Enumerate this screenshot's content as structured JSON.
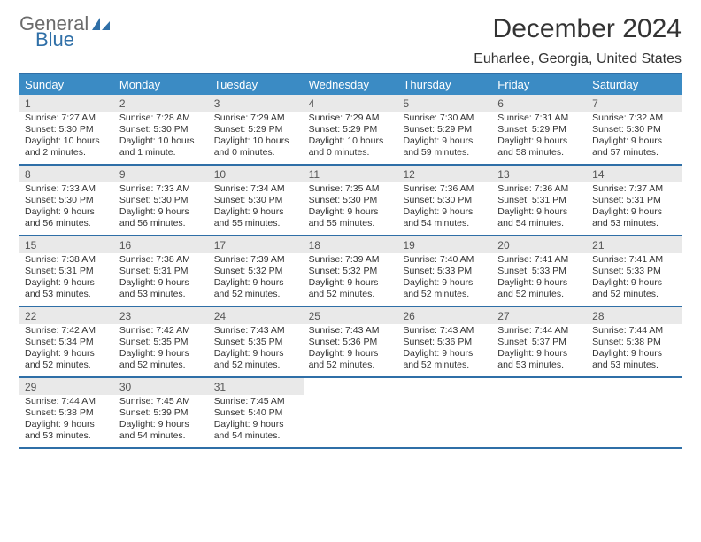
{
  "logo": {
    "word1": "General",
    "word2": "Blue",
    "color_gray": "#6b6b6b",
    "color_blue": "#2f6fa7"
  },
  "title": "December 2024",
  "location": "Euharlee, Georgia, United States",
  "header_bg": "#3b8bc4",
  "border_color": "#2f6fa7",
  "daynum_bg": "#e9e9e9",
  "day_names": [
    "Sunday",
    "Monday",
    "Tuesday",
    "Wednesday",
    "Thursday",
    "Friday",
    "Saturday"
  ],
  "weeks": [
    [
      {
        "n": "1",
        "sr": "7:27 AM",
        "ss": "5:30 PM",
        "dl": "10 hours and 2 minutes."
      },
      {
        "n": "2",
        "sr": "7:28 AM",
        "ss": "5:30 PM",
        "dl": "10 hours and 1 minute."
      },
      {
        "n": "3",
        "sr": "7:29 AM",
        "ss": "5:29 PM",
        "dl": "10 hours and 0 minutes."
      },
      {
        "n": "4",
        "sr": "7:29 AM",
        "ss": "5:29 PM",
        "dl": "10 hours and 0 minutes."
      },
      {
        "n": "5",
        "sr": "7:30 AM",
        "ss": "5:29 PM",
        "dl": "9 hours and 59 minutes."
      },
      {
        "n": "6",
        "sr": "7:31 AM",
        "ss": "5:29 PM",
        "dl": "9 hours and 58 minutes."
      },
      {
        "n": "7",
        "sr": "7:32 AM",
        "ss": "5:30 PM",
        "dl": "9 hours and 57 minutes."
      }
    ],
    [
      {
        "n": "8",
        "sr": "7:33 AM",
        "ss": "5:30 PM",
        "dl": "9 hours and 56 minutes."
      },
      {
        "n": "9",
        "sr": "7:33 AM",
        "ss": "5:30 PM",
        "dl": "9 hours and 56 minutes."
      },
      {
        "n": "10",
        "sr": "7:34 AM",
        "ss": "5:30 PM",
        "dl": "9 hours and 55 minutes."
      },
      {
        "n": "11",
        "sr": "7:35 AM",
        "ss": "5:30 PM",
        "dl": "9 hours and 55 minutes."
      },
      {
        "n": "12",
        "sr": "7:36 AM",
        "ss": "5:30 PM",
        "dl": "9 hours and 54 minutes."
      },
      {
        "n": "13",
        "sr": "7:36 AM",
        "ss": "5:31 PM",
        "dl": "9 hours and 54 minutes."
      },
      {
        "n": "14",
        "sr": "7:37 AM",
        "ss": "5:31 PM",
        "dl": "9 hours and 53 minutes."
      }
    ],
    [
      {
        "n": "15",
        "sr": "7:38 AM",
        "ss": "5:31 PM",
        "dl": "9 hours and 53 minutes."
      },
      {
        "n": "16",
        "sr": "7:38 AM",
        "ss": "5:31 PM",
        "dl": "9 hours and 53 minutes."
      },
      {
        "n": "17",
        "sr": "7:39 AM",
        "ss": "5:32 PM",
        "dl": "9 hours and 52 minutes."
      },
      {
        "n": "18",
        "sr": "7:39 AM",
        "ss": "5:32 PM",
        "dl": "9 hours and 52 minutes."
      },
      {
        "n": "19",
        "sr": "7:40 AM",
        "ss": "5:33 PM",
        "dl": "9 hours and 52 minutes."
      },
      {
        "n": "20",
        "sr": "7:41 AM",
        "ss": "5:33 PM",
        "dl": "9 hours and 52 minutes."
      },
      {
        "n": "21",
        "sr": "7:41 AM",
        "ss": "5:33 PM",
        "dl": "9 hours and 52 minutes."
      }
    ],
    [
      {
        "n": "22",
        "sr": "7:42 AM",
        "ss": "5:34 PM",
        "dl": "9 hours and 52 minutes."
      },
      {
        "n": "23",
        "sr": "7:42 AM",
        "ss": "5:35 PM",
        "dl": "9 hours and 52 minutes."
      },
      {
        "n": "24",
        "sr": "7:43 AM",
        "ss": "5:35 PM",
        "dl": "9 hours and 52 minutes."
      },
      {
        "n": "25",
        "sr": "7:43 AM",
        "ss": "5:36 PM",
        "dl": "9 hours and 52 minutes."
      },
      {
        "n": "26",
        "sr": "7:43 AM",
        "ss": "5:36 PM",
        "dl": "9 hours and 52 minutes."
      },
      {
        "n": "27",
        "sr": "7:44 AM",
        "ss": "5:37 PM",
        "dl": "9 hours and 53 minutes."
      },
      {
        "n": "28",
        "sr": "7:44 AM",
        "ss": "5:38 PM",
        "dl": "9 hours and 53 minutes."
      }
    ],
    [
      {
        "n": "29",
        "sr": "7:44 AM",
        "ss": "5:38 PM",
        "dl": "9 hours and 53 minutes."
      },
      {
        "n": "30",
        "sr": "7:45 AM",
        "ss": "5:39 PM",
        "dl": "9 hours and 54 minutes."
      },
      {
        "n": "31",
        "sr": "7:45 AM",
        "ss": "5:40 PM",
        "dl": "9 hours and 54 minutes."
      },
      null,
      null,
      null,
      null
    ]
  ],
  "labels": {
    "sunrise": "Sunrise:",
    "sunset": "Sunset:",
    "daylight": "Daylight:"
  }
}
